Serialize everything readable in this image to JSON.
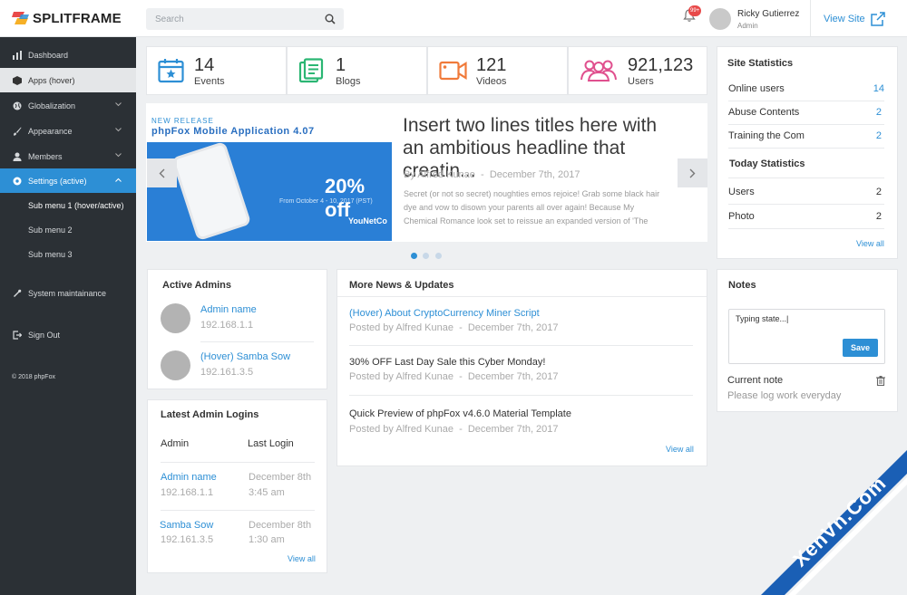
{
  "brand": {
    "name": "SPLITFRAME"
  },
  "search": {
    "placeholder": "Search"
  },
  "notifications": {
    "badge": "99+"
  },
  "user": {
    "name": "Ricky Gutierrez",
    "role": "Admin"
  },
  "header": {
    "view_site": "View Site"
  },
  "sidebar": {
    "items": [
      {
        "label": "Dashboard",
        "icon": "dashboard-icon"
      },
      {
        "label": "Apps (hover)",
        "icon": "apps-icon"
      },
      {
        "label": "Globalization",
        "icon": "globe-icon"
      },
      {
        "label": "Appearance",
        "icon": "brush-icon"
      },
      {
        "label": "Members",
        "icon": "members-icon"
      },
      {
        "label": "Settings (active)",
        "icon": "settings-icon"
      }
    ],
    "sub_items": [
      {
        "label": "Sub menu 1 (hover/active)"
      },
      {
        "label": "Sub menu 2"
      },
      {
        "label": "Sub menu 3"
      }
    ],
    "maintenance": "System maintainance",
    "sign_out": "Sign Out",
    "copyright": "© 2018 phpFox"
  },
  "stats": [
    {
      "value": "14",
      "label": "Events",
      "icon": "calendar-star-icon"
    },
    {
      "value": "1",
      "label": "Blogs",
      "icon": "blog-icon"
    },
    {
      "value": "121",
      "label": "Videos",
      "icon": "video-icon"
    },
    {
      "value": "921,123",
      "label": "Users",
      "icon": "users-icon"
    }
  ],
  "slider": {
    "image": {
      "tag": "NEW RELEASE",
      "title": "phpFox Mobile Application 4.07",
      "offer": "20% off",
      "offer_dates": "From October 4 - 10, 2017 (PST)",
      "brand": "YouNetCo"
    },
    "title": "Insert two lines titles here with an ambitious headline that creatin...",
    "meta_prefix": "By",
    "author": "Alfred Kunae",
    "date": "December 7th, 2017",
    "body": "Secret (or not so secret) noughties emos rejoice! Grab some black hair dye and vow to disown your parents all over again! Because My Chemical Romance look set to reissue an expanded version of 'The",
    "slides_count": 3,
    "active_slide": 1
  },
  "site_statistics": {
    "title": "Site Statistics",
    "rows": [
      {
        "label": "Online users",
        "value": "14"
      },
      {
        "label": "Abuse Contents",
        "value": "2"
      },
      {
        "label": "Training the Com",
        "value": "2"
      }
    ],
    "today_title": "Today Statistics",
    "today_rows": [
      {
        "label": "Users",
        "value": "2"
      },
      {
        "label": "Photo",
        "value": "2"
      }
    ],
    "view_all": "View all"
  },
  "active_admins": {
    "title": "Active Admins",
    "admins": [
      {
        "name": "Admin name",
        "ip": "192.168.1.1"
      },
      {
        "name": "(Hover) Samba Sow",
        "ip": "192.161.3.5"
      }
    ]
  },
  "latest_logins": {
    "title": "Latest Admin Logins",
    "col_admin": "Admin",
    "col_last_login": "Last Login",
    "rows": [
      {
        "name": "Admin name",
        "ip": "192.168.1.1",
        "date": "December 8th",
        "time": "3:45 am"
      },
      {
        "name": "Samba Sow",
        "ip": "192.161.3.5",
        "date": "December 8th",
        "time": "1:30 am"
      }
    ],
    "view_all": "View all"
  },
  "news": {
    "title": "More News & Updates",
    "items": [
      {
        "title": "(Hover) About CryptoCurrency Miner Script",
        "meta": "Posted by Alfred Kunae  -  December 7th, 2017"
      },
      {
        "title": "30% OFF Last Day Sale this Cyber Monday!",
        "meta": "Posted by Alfred Kunae  -  December 7th, 2017"
      },
      {
        "title": "Quick Preview of phpFox v4.6.0 Material Template",
        "meta": "Posted by Alfred Kunae  -  December 7th, 2017"
      }
    ],
    "view_all": "View all"
  },
  "notes": {
    "title": "Notes",
    "input_value": "Typing state...|",
    "save_label": "Save",
    "current_label": "Current note",
    "current_value": "Please log work everyday"
  },
  "watermark": {
    "text": "XenVn.Com"
  },
  "colors": {
    "accent": "#2d8fd5",
    "sidebar": "#2b3035",
    "background": "#eef0f2",
    "badge": "#e84a4a",
    "watermark": "#1a5fb5"
  }
}
